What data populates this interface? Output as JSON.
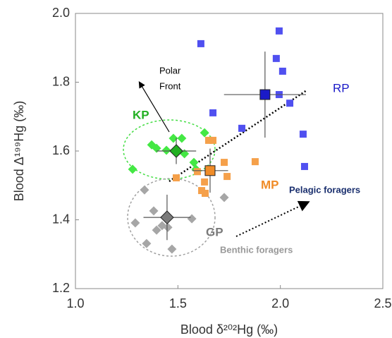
{
  "chart_data": {
    "type": "scatter",
    "x_label": "Blood δ²⁰²Hg  (‰)",
    "y_label": "Blood Δ¹⁹⁹Hg (‰)",
    "xlim": [
      1.0,
      2.5
    ],
    "ylim": [
      1.2,
      2.0
    ],
    "xticks": [
      {
        "value": 1.0,
        "label": "1.0"
      },
      1.5,
      {
        "value": 2.0,
        "label": "2.0"
      },
      2.5
    ],
    "yticks": [
      1.2,
      1.4,
      1.6,
      1.8,
      {
        "value": 2.0,
        "label": "2.0"
      }
    ],
    "series": [
      {
        "name": "RP",
        "color": "#5050f0",
        "mean_color": "#1a1ac8",
        "marker": "square",
        "x": [
          1.612,
          1.994,
          1.98,
          2.011,
          1.994,
          2.046,
          1.671,
          1.812,
          2.111,
          2.118
        ],
        "values": [
          1.912,
          1.949,
          1.869,
          1.832,
          1.764,
          1.739,
          1.711,
          1.666,
          1.649,
          1.555
        ],
        "mean": {
          "x": 1.925,
          "y": 1.764,
          "xerr": 0.2,
          "yerr": 0.125
        }
      },
      {
        "name": "KP",
        "color": "#44e844",
        "mean_color": "#22b022",
        "marker": "diamond",
        "x": [
          1.279,
          1.372,
          1.396,
          1.444,
          1.478,
          1.519,
          1.532,
          1.578,
          1.588,
          1.63
        ],
        "values": [
          1.547,
          1.618,
          1.608,
          1.602,
          1.637,
          1.637,
          1.592,
          1.567,
          1.547,
          1.653
        ],
        "mean": {
          "x": 1.492,
          "y": 1.6,
          "xerr": 0.097,
          "yerr": 0.038
        }
      },
      {
        "name": "MP",
        "color": "#f5a04a",
        "mean_color": "#f08c28",
        "marker": "square",
        "x": [
          1.671,
          1.65,
          1.492,
          1.595,
          1.63,
          1.616,
          1.633,
          1.726,
          1.74,
          1.877
        ],
        "values": [
          1.631,
          1.631,
          1.522,
          1.54,
          1.51,
          1.485,
          1.477,
          1.567,
          1.526,
          1.569
        ],
        "mean": {
          "x": 1.657,
          "y": 1.543,
          "xerr": 0.088,
          "yerr": 0.064
        }
      },
      {
        "name": "GP",
        "color": "#a6a6a6",
        "mean_color": "#7a7a7a",
        "marker": "diamond",
        "x": [
          1.337,
          1.292,
          1.347,
          1.382,
          1.396,
          1.423,
          1.471,
          1.568,
          1.451,
          1.726
        ],
        "values": [
          1.487,
          1.391,
          1.331,
          1.426,
          1.37,
          1.383,
          1.315,
          1.403,
          1.378,
          1.465
        ],
        "mean": {
          "x": 1.447,
          "y": 1.407,
          "xerr": 0.115,
          "yerr": 0.066
        }
      }
    ],
    "annotations": [
      "Polar",
      "Front",
      "Pelagic foragers",
      "Benthic foragers"
    ]
  }
}
